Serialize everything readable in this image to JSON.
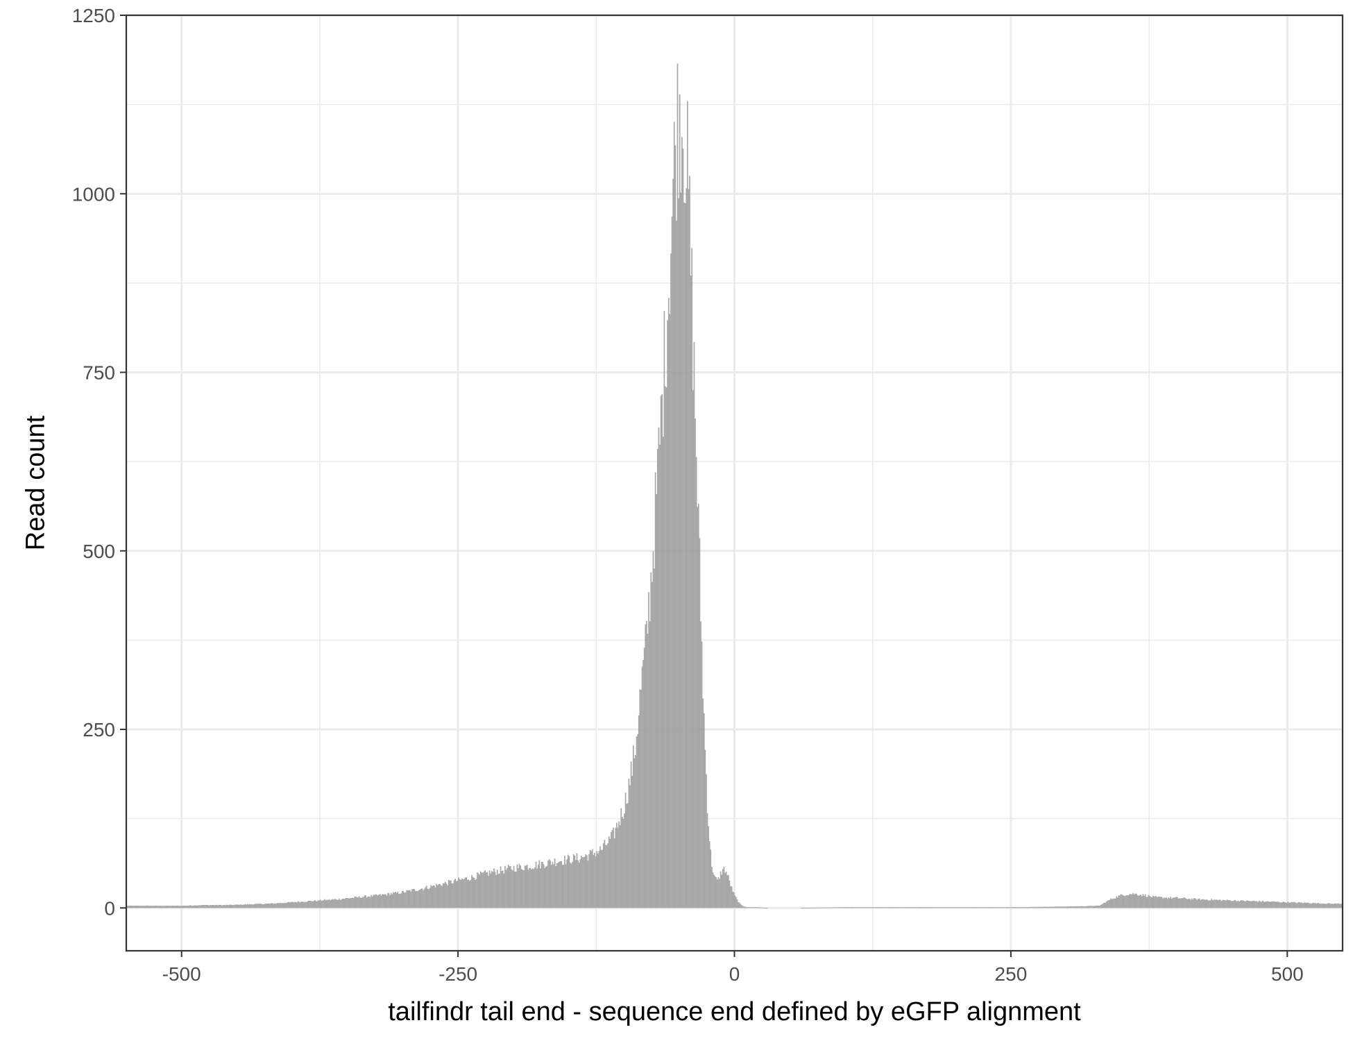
{
  "chart_data": {
    "type": "bar",
    "subtype": "histogram",
    "xlabel": "tailfindr tail end - sequence end defined by eGFP alignment",
    "ylabel": "Read count",
    "xlim": [
      -550,
      550
    ],
    "ylim": [
      -60,
      1250
    ],
    "x_ticks": [
      -500,
      -250,
      0,
      250,
      500
    ],
    "x_tick_labels": [
      "-500",
      "-250",
      "0",
      "250",
      "500"
    ],
    "y_ticks": [
      0,
      250,
      500,
      750,
      1000,
      1250
    ],
    "y_tick_labels": [
      "0",
      "250",
      "500",
      "750",
      "1000",
      "1250"
    ],
    "grid": true,
    "bar_color": "#9e9e9e",
    "bins": {
      "x": [
        -540,
        -520,
        -500,
        -480,
        -460,
        -440,
        -420,
        -400,
        -380,
        -360,
        -340,
        -320,
        -300,
        -280,
        -260,
        -240,
        -220,
        -200,
        -180,
        -160,
        -140,
        -130,
        -120,
        -110,
        -100,
        -95,
        -90,
        -85,
        -80,
        -75,
        -70,
        -65,
        -60,
        -57,
        -54,
        -51,
        -48,
        -45,
        -42,
        -39,
        -36,
        -33,
        -30,
        -27,
        -24,
        -21,
        -18,
        -15,
        -12,
        -9,
        -6,
        -3,
        0,
        3,
        6,
        9,
        12,
        15,
        20,
        30,
        40,
        60,
        100,
        150,
        200,
        250,
        300,
        330,
        340,
        350,
        360,
        370,
        380,
        400,
        420,
        440,
        460,
        480,
        500,
        520,
        540
      ],
      "values": [
        3,
        3,
        3,
        4,
        4,
        5,
        6,
        8,
        10,
        12,
        15,
        18,
        22,
        28,
        35,
        42,
        50,
        56,
        60,
        66,
        70,
        75,
        82,
        100,
        140,
        175,
        220,
        300,
        370,
        470,
        590,
        720,
        860,
        960,
        1050,
        1110,
        1120,
        1085,
        1010,
        880,
        720,
        560,
        390,
        240,
        130,
        65,
        42,
        38,
        50,
        55,
        45,
        30,
        18,
        10,
        4,
        2,
        1,
        1,
        1,
        0,
        0,
        0,
        1,
        1,
        1,
        1,
        2,
        3,
        12,
        18,
        20,
        18,
        15,
        14,
        12,
        11,
        10,
        9,
        8,
        7,
        6
      ]
    }
  }
}
